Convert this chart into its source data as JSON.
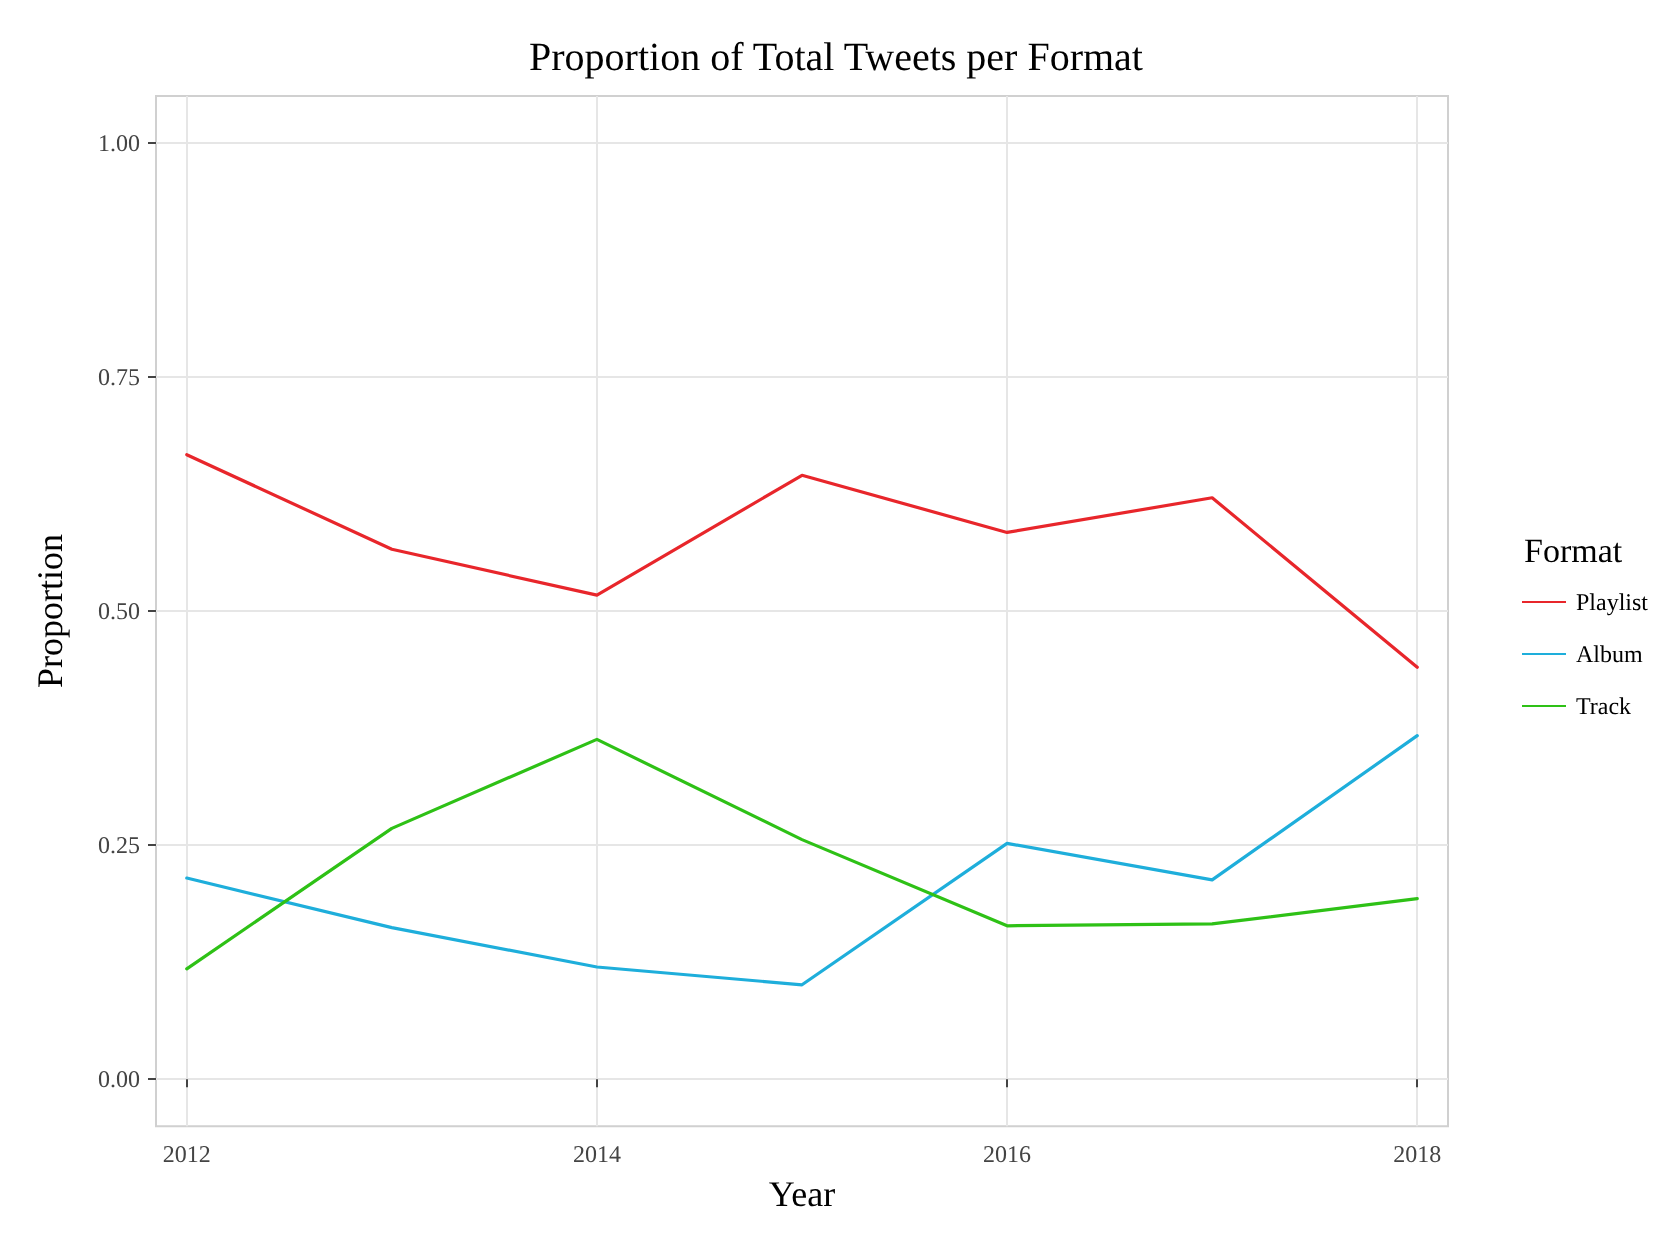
{
  "chart_data": {
    "type": "line",
    "title": "Proportion of Total Tweets per Format",
    "xlabel": "Year",
    "ylabel": "Proportion",
    "legend_title": "Format",
    "x": [
      2012,
      2013,
      2014,
      2015,
      2016,
      2017,
      2018
    ],
    "series": [
      {
        "name": "Playlist",
        "color": "#e8262b",
        "values": [
          0.667,
          0.566,
          0.517,
          0.645,
          0.584,
          0.621,
          0.44
        ]
      },
      {
        "name": "Album",
        "color": "#1eaedb",
        "values": [
          0.215,
          0.162,
          0.12,
          0.101,
          0.252,
          0.213,
          0.367
        ]
      },
      {
        "name": "Track",
        "color": "#2ec116",
        "values": [
          0.118,
          0.268,
          0.363,
          0.256,
          0.164,
          0.166,
          0.193
        ]
      }
    ],
    "xlim": [
      2011.85,
      2018.15
    ],
    "ylim": [
      -0.05,
      1.05
    ],
    "xticks": [
      2012,
      2014,
      2016,
      2018
    ],
    "yticks": [
      {
        "value": 0,
        "label": "0.00"
      },
      {
        "value": 0.25,
        "label": "0.25"
      },
      {
        "value": 0.5,
        "label": "0.50"
      },
      {
        "value": 0.75,
        "label": "0.75"
      },
      {
        "value": 1,
        "label": "1.00"
      }
    ],
    "grid": true,
    "legend": "right",
    "marker": "none",
    "line_style": "solid"
  }
}
